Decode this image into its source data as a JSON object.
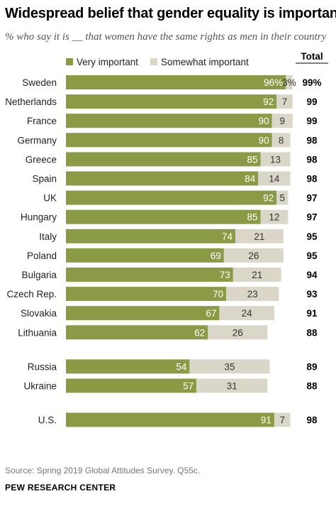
{
  "title": "Widespread belief that gender equality is important",
  "subtitle": "% who say it is __ that women have the same rights as men in their country",
  "colors": {
    "very": "#8a9a45",
    "somewhat": "#dad7c8",
    "text_muted": "#555555"
  },
  "chart_data": {
    "type": "bar",
    "orientation": "horizontal",
    "stacked": true,
    "legend": [
      "Very important",
      "Somewhat important"
    ],
    "total_label": "Total",
    "xlim": [
      0,
      100
    ],
    "groups": [
      [
        "Sweden",
        "Netherlands",
        "France",
        "Germany",
        "Greece",
        "Spain",
        "UK",
        "Hungary",
        "Italy",
        "Poland",
        "Bulgaria",
        "Czech Rep.",
        "Slovakia",
        "Lithuania"
      ],
      [
        "Russia",
        "Ukraine"
      ],
      [
        "U.S."
      ]
    ],
    "categories": [
      "Sweden",
      "Netherlands",
      "France",
      "Germany",
      "Greece",
      "Spain",
      "UK",
      "Hungary",
      "Italy",
      "Poland",
      "Bulgaria",
      "Czech Rep.",
      "Slovakia",
      "Lithuania",
      "Russia",
      "Ukraine",
      "U.S."
    ],
    "series": [
      {
        "name": "Very important",
        "values": [
          96,
          92,
          90,
          90,
          85,
          84,
          92,
          85,
          74,
          69,
          73,
          70,
          67,
          62,
          54,
          57,
          91
        ],
        "labels": [
          "96%",
          "92",
          "90",
          "90",
          "85",
          "84",
          "92",
          "85",
          "74",
          "69",
          "73",
          "70",
          "67",
          "62",
          "54",
          "57",
          "91"
        ]
      },
      {
        "name": "Somewhat important",
        "values": [
          3,
          7,
          9,
          8,
          13,
          14,
          5,
          12,
          21,
          26,
          21,
          23,
          24,
          26,
          35,
          31,
          7
        ],
        "labels": [
          "3%",
          "7",
          "9",
          "8",
          "13",
          "14",
          "5",
          "12",
          "21",
          "26",
          "21",
          "23",
          "24",
          "26",
          "35",
          "31",
          "7"
        ]
      }
    ],
    "totals": [
      "99%",
      "99",
      "99",
      "98",
      "98",
      "98",
      "97",
      "97",
      "95",
      "95",
      "94",
      "93",
      "91",
      "88",
      "89",
      "88",
      "98"
    ]
  },
  "source": "Source: Spring 2019 Global Attitudes Survey. Q55c.",
  "org": "PEW RESEARCH CENTER"
}
